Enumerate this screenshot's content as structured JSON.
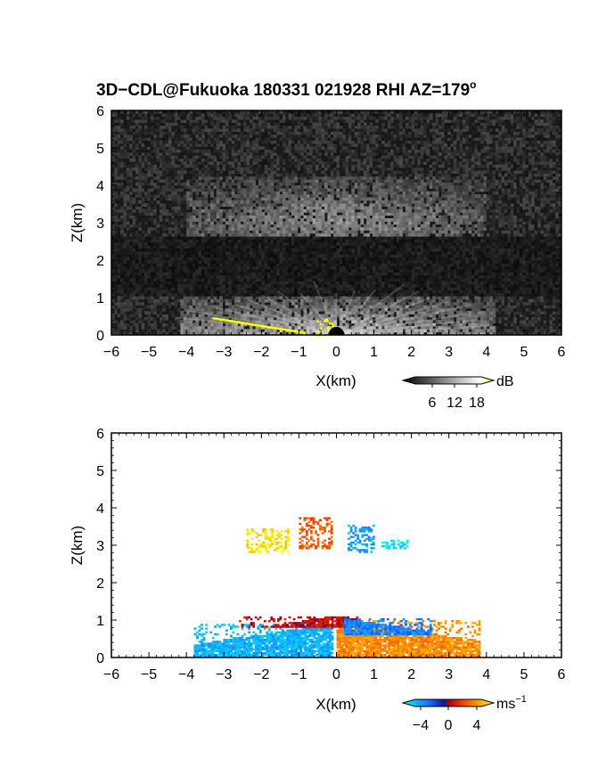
{
  "chart_data": [
    {
      "type": "heatmap",
      "title_main": "3D−CDL@Fukuoka 180331 021928 RHI AZ=179",
      "title_sup": "o",
      "xlabel": "X(km)",
      "ylabel": "Z(km)",
      "xlim": [
        -6,
        6
      ],
      "ylim": [
        0,
        6
      ],
      "x_ticks": [
        "−6",
        "−5",
        "−4",
        "−3",
        "−2",
        "−1",
        "0",
        "1",
        "2",
        "3",
        "4",
        "5",
        "6"
      ],
      "y_ticks": [
        "0",
        "1",
        "2",
        "3",
        "4",
        "5",
        "6"
      ],
      "grid": false,
      "colorbar": {
        "unit": "dB",
        "ticks": [
          "6",
          "12",
          "18"
        ],
        "range": [
          0,
          21
        ],
        "colors": [
          "#000000",
          "#ffffff",
          "#ffff00"
        ]
      },
      "features": [
        {
          "name": "near-surface bright layer",
          "x_range": [
            -4,
            4
          ],
          "z_range": [
            0,
            1.0
          ],
          "intensity_db": 14
        },
        {
          "name": "elevated layer",
          "x_range": [
            -4,
            4
          ],
          "z_range": [
            2.6,
            4.2
          ],
          "intensity_db": 10
        },
        {
          "name": "dark band",
          "x_range": [
            -6,
            6
          ],
          "z_range": [
            1.0,
            2.6
          ],
          "intensity_db": 2
        },
        {
          "name": "yellow ground strip",
          "x_range": [
            -3.3,
            -0.5
          ],
          "z_range": [
            0,
            0.5
          ],
          "intensity_db": 20
        }
      ]
    },
    {
      "type": "heatmap",
      "xlabel": "X(km)",
      "ylabel": "Z(km)",
      "xlim": [
        -6,
        6
      ],
      "ylim": [
        0,
        6
      ],
      "x_ticks": [
        "−6",
        "−5",
        "−4",
        "−3",
        "−2",
        "−1",
        "0",
        "1",
        "2",
        "3",
        "4",
        "5",
        "6"
      ],
      "y_ticks": [
        "0",
        "1",
        "2",
        "3",
        "4",
        "5",
        "6"
      ],
      "grid": false,
      "colorbar": {
        "unit": "ms",
        "unit_sup": "−1",
        "ticks": [
          "−4",
          "0",
          "4"
        ],
        "range": [
          -5,
          5
        ]
      },
      "regions": [
        {
          "x_range": [
            -3.8,
            -0.1
          ],
          "z_range": [
            0,
            0.9
          ],
          "velocity_ms": -3.5
        },
        {
          "x_range": [
            0,
            3.8
          ],
          "z_range": [
            0,
            1.0
          ],
          "velocity_ms": 3.0
        },
        {
          "x_range": [
            -2.6,
            0.6
          ],
          "z_range": [
            0.8,
            1.1
          ],
          "velocity_ms": 0.5
        },
        {
          "x_range": [
            0.2,
            2.5
          ],
          "z_range": [
            0.6,
            1.05
          ],
          "velocity_ms": -2.5
        },
        {
          "x_range": [
            -2.4,
            -1.3
          ],
          "z_range": [
            2.8,
            3.4
          ],
          "velocity_ms": 4.5
        },
        {
          "x_range": [
            -1.0,
            -0.1
          ],
          "z_range": [
            2.9,
            3.7
          ],
          "velocity_ms": 2.0
        },
        {
          "x_range": [
            0.3,
            1.0
          ],
          "z_range": [
            2.8,
            3.5
          ],
          "velocity_ms": -3.0
        },
        {
          "x_range": [
            1.2,
            1.9
          ],
          "z_range": [
            2.9,
            3.1
          ],
          "velocity_ms": -4.5
        }
      ]
    }
  ]
}
